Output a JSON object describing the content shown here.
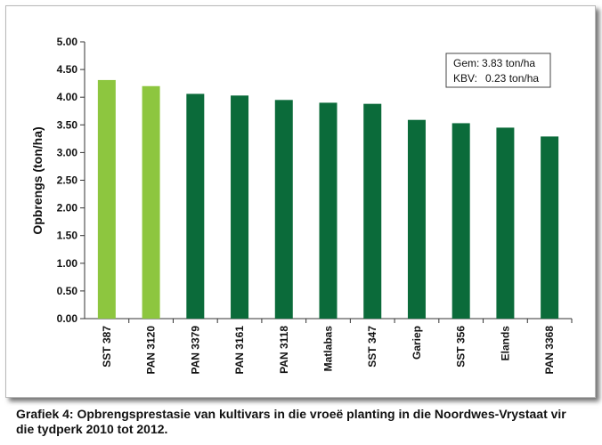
{
  "caption": "Grafiek 4: Opbrengsprestasie van kultivars in die vroeë planting in die Noordwes-Vrystaat vir die tydperk 2010 tot 2012.",
  "stats": {
    "gem_label": "Gem:",
    "gem_value": "3.83 ton/ha",
    "kbv_label": "KBV:",
    "kbv_value": "0.23 ton/ha"
  },
  "colors": {
    "light_green": "#8dc63f",
    "dark_green": "#0b6b3a"
  },
  "chart_data": {
    "type": "bar",
    "title": "",
    "xlabel": "",
    "ylabel": "Opbrengs (ton/ha)",
    "ylim": [
      0,
      5
    ],
    "yticks": [
      "0.00",
      "0.50",
      "1.00",
      "1.50",
      "2.00",
      "2.50",
      "3.00",
      "3.50",
      "4.00",
      "4.50",
      "5.00"
    ],
    "grid": false,
    "categories": [
      "SST 387",
      "PAN 3120",
      "PAN 3379",
      "PAN 3161",
      "PAN 3118",
      "Matlabas",
      "SST 347",
      "Gariep",
      "SST 356",
      "Elands",
      "PAN 3368"
    ],
    "values": [
      4.31,
      4.2,
      4.06,
      4.03,
      3.95,
      3.9,
      3.88,
      3.59,
      3.53,
      3.45,
      3.29
    ],
    "bar_colors": [
      "light",
      "light",
      "dark",
      "dark",
      "dark",
      "dark",
      "dark",
      "dark",
      "dark",
      "dark",
      "dark"
    ]
  }
}
